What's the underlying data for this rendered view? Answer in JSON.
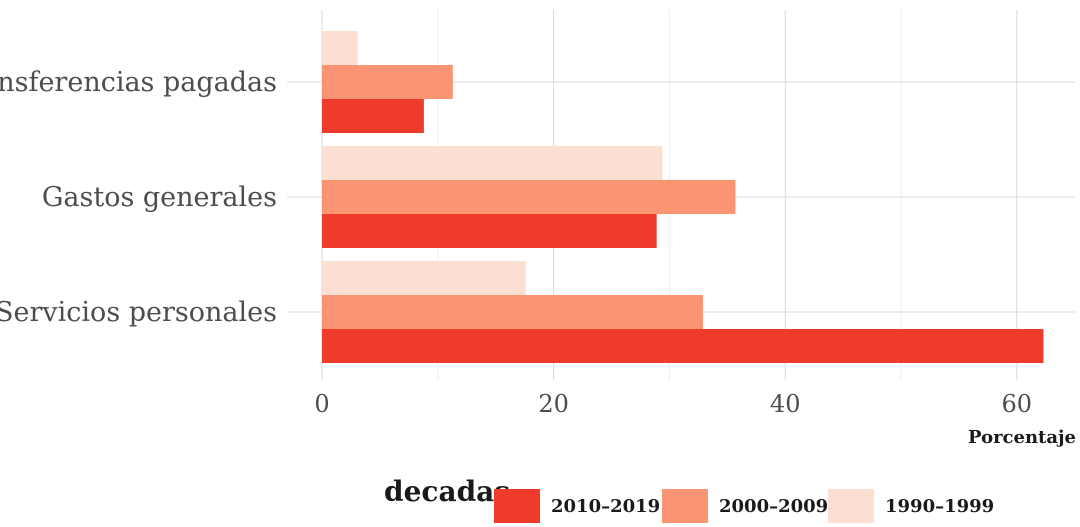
{
  "chart_data": {
    "type": "bar",
    "orientation": "horizontal",
    "categories": [
      "Transferencias pagadas",
      "Gastos generales",
      "Servicios personales"
    ],
    "series": [
      {
        "name": "1990–1999",
        "values": [
          3.1,
          29.4,
          17.6
        ],
        "color": "#fcdfd3"
      },
      {
        "name": "2000–2009",
        "values": [
          11.3,
          35.7,
          32.9
        ],
        "color": "#fb9473"
      },
      {
        "name": "2010–2019",
        "values": [
          8.8,
          28.9,
          62.3
        ],
        "color": "#ef3b2c"
      }
    ],
    "legend_order": [
      "2010–2019",
      "2000–2009",
      "1990–1999"
    ],
    "xlabel": "Porcentaje",
    "ylabel": "",
    "xlim": [
      0,
      65
    ],
    "xticks": [
      0,
      20,
      40,
      60
    ],
    "grid": true,
    "legend_title": "decadas",
    "legend_position": "bottom"
  }
}
